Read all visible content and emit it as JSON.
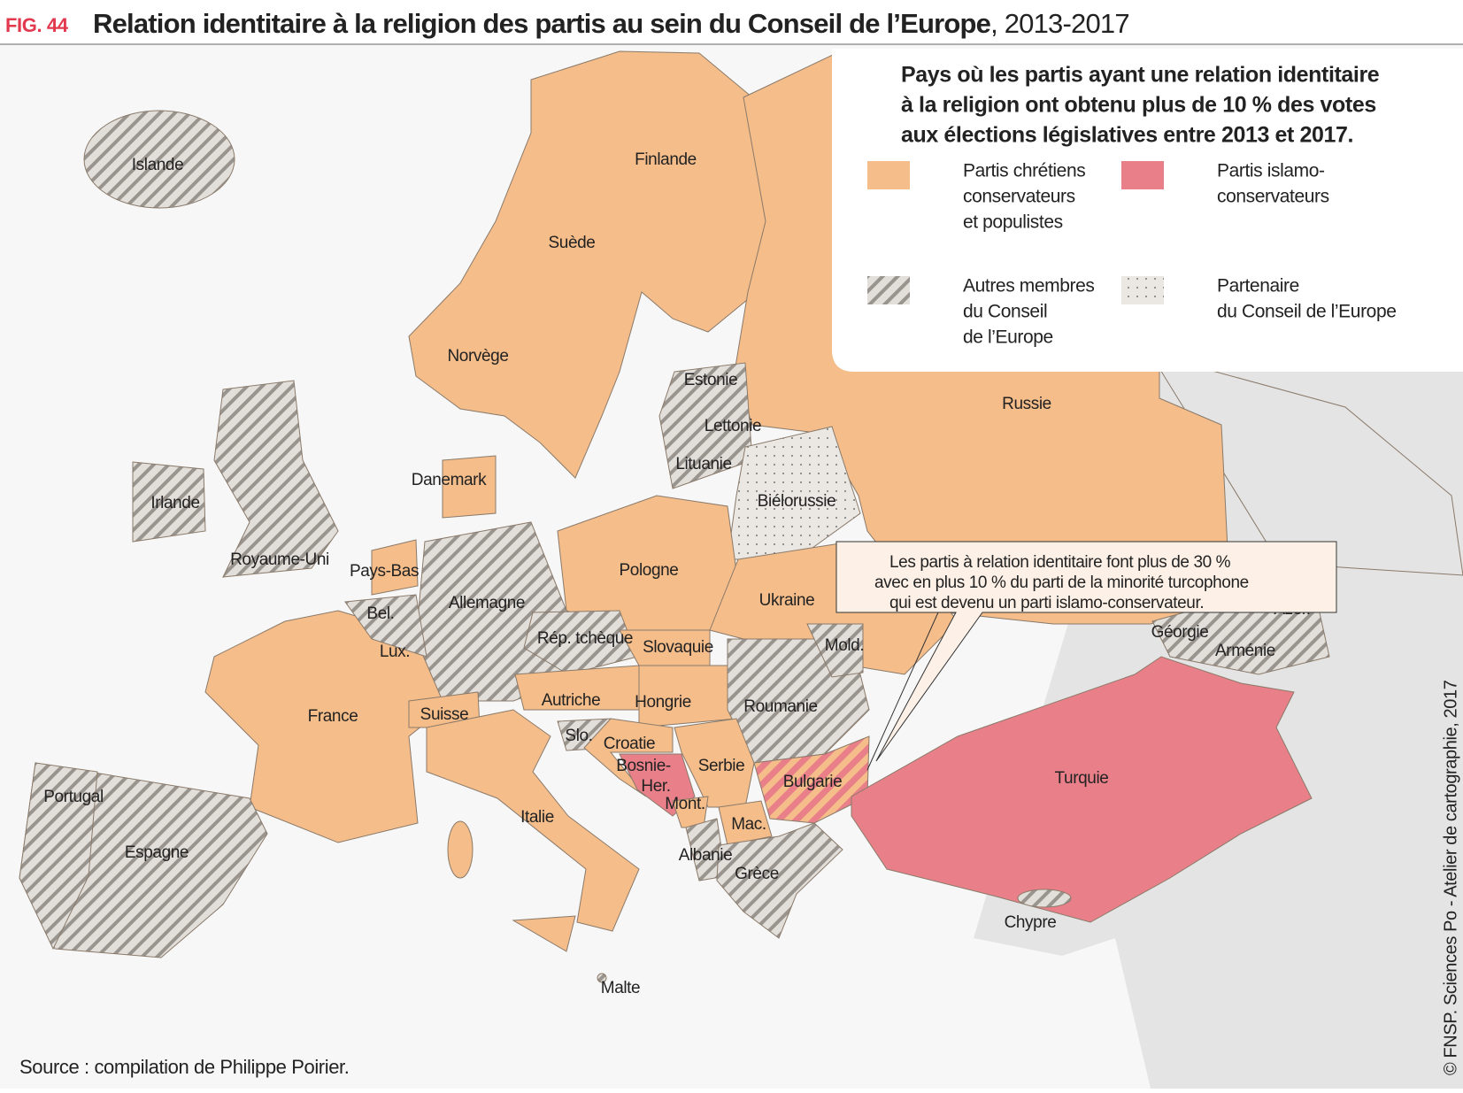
{
  "header": {
    "fig": "FIG. 44",
    "title": "Relation identitaire à la religion des partis au sein du Conseil de l’Europe",
    "subtitle": ", 2013-2017"
  },
  "legend": {
    "title": [
      "Pays où les partis ayant une relation identitaire",
      "à la religion ont obtenu plus de 10 % des votes",
      "aux élections législatives entre 2013 et 2017."
    ],
    "items": [
      {
        "lines": [
          "Partis chrétiens",
          "conservateurs",
          "et populistes"
        ],
        "color": "#f5bd8a"
      },
      {
        "lines": [
          "Partis islamo-",
          "conservateurs"
        ],
        "color": "#e98089"
      },
      {
        "lines": [
          "Autres membres",
          "du Conseil",
          "de l’Europe"
        ]
      },
      {
        "lines": [
          "Partenaire",
          "du Conseil de l’Europe"
        ]
      }
    ]
  },
  "annotation": [
    "Les partis à relation identitaire font plus de 30 %",
    "avec en plus 10 % du parti de la minorité turcophone",
    "qui est devenu un parti islamo-conservateur."
  ],
  "labels": [
    "Islande",
    "Finlande",
    "Suède",
    "Norvège",
    "Estonie",
    "Lettonie",
    "Lituanie",
    "Danemark",
    "Biélorussie",
    "Irlande",
    "Royaume-Uni",
    "Pays-Bas",
    "Pologne",
    "Allemagne",
    "Ukraine",
    "Bel.",
    "Rép. tchèque",
    "Slovaquie",
    "Lux.",
    "Mold.",
    "Russie",
    "Azer.",
    "Géorgie",
    "Arménie",
    "Autriche",
    "Hongrie",
    "Roumanie",
    "France",
    "Suisse",
    "Slo.",
    "Croatie",
    "Bosnie-",
    "Her.",
    "Serbie",
    "Bulgarie",
    "Turquie",
    "Portugal",
    "Mont.",
    "Italie",
    "Mac.",
    "Espagne",
    "Albanie",
    "Grèce",
    "Chypre",
    "Malte"
  ],
  "source": "Source : compilation de Philippe Poirier.",
  "credit": "© FNSP. Sciences Po - Atelier de cartographie, 2017"
}
